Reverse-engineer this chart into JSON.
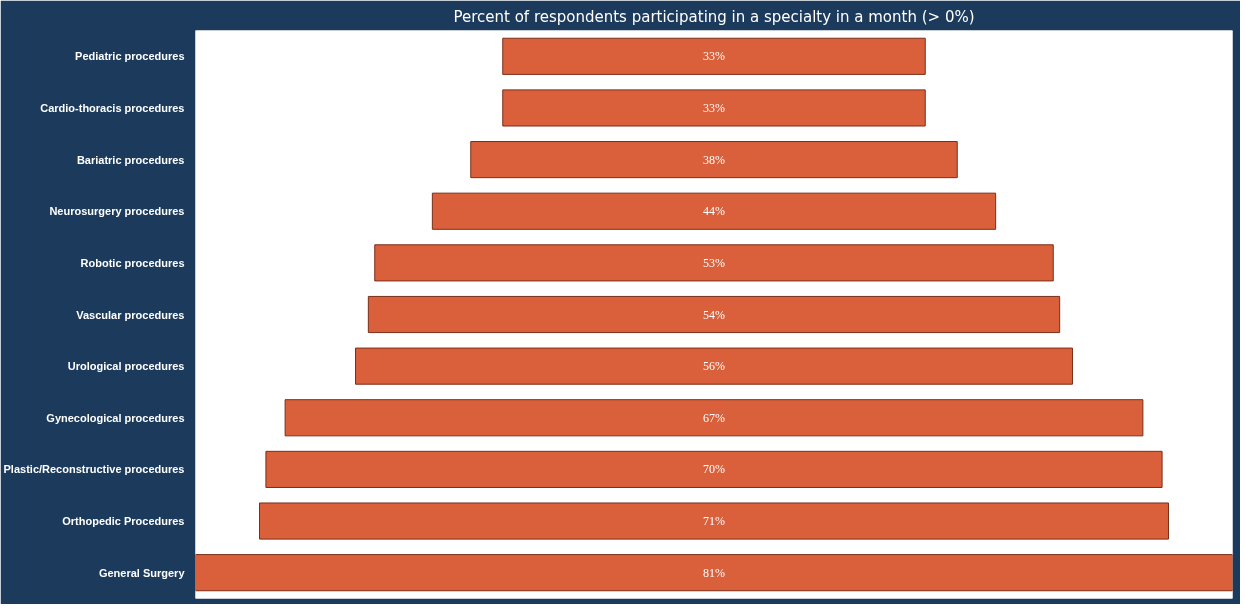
{
  "chart_data": {
    "type": "other",
    "title": "Percent of respondents participating in a specialty in a month (> 0%)",
    "categories": [
      "Pediatric procedures",
      "Cardio-thoracis procedures",
      "Bariatric procedures",
      "Neurosurgery procedures",
      "Robotic procedures",
      "Vascular procedures",
      "Urological procedures",
      "Gynecological procedures",
      "Plastic/Reconstructive procedures",
      "Orthopedic Procedures",
      "General Surgery"
    ],
    "values": [
      33,
      33,
      38,
      44,
      53,
      54,
      56,
      67,
      70,
      71,
      81
    ],
    "value_labels": [
      "33%",
      "33%",
      "38%",
      "44%",
      "53%",
      "54%",
      "56%",
      "67%",
      "70%",
      "71%",
      "81%"
    ],
    "color": "#d9603b"
  }
}
